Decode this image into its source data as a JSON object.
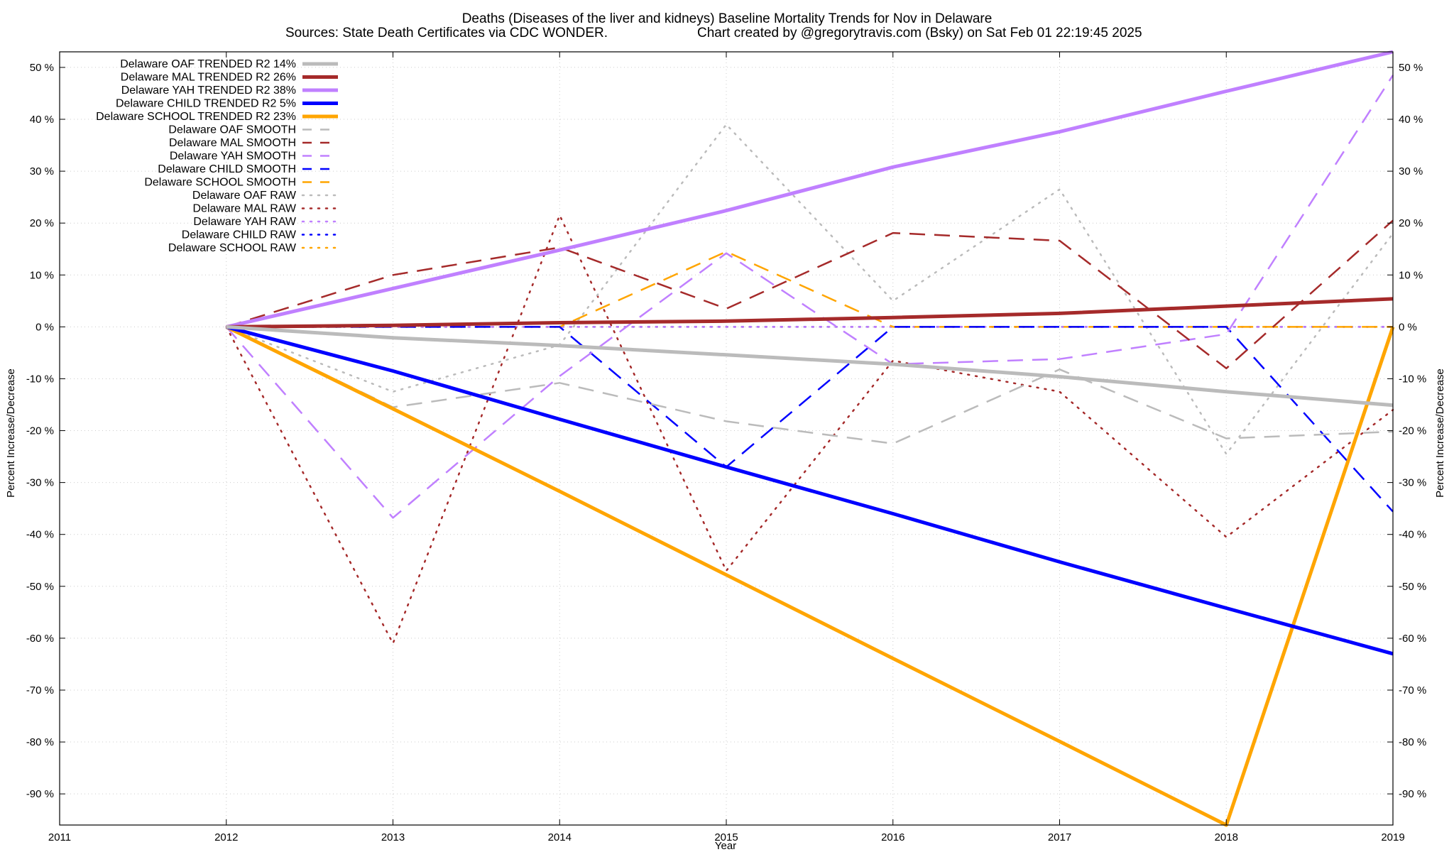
{
  "chart_data": {
    "type": "line",
    "title": "Deaths (Diseases of the liver and kidneys)  Baseline Mortality Trends for Nov in Delaware",
    "subtitle_left": "Sources: State Death Certificates via CDC WONDER.",
    "subtitle_right": "Chart created by @gregorytravis.com (Bsky) on Sat Feb 01 22:19:45 2025",
    "xlabel": "Year",
    "ylabel": "Percent Increase/Decrease",
    "y2label": "Percent Increase/Decrease",
    "xlim": [
      2011,
      2019
    ],
    "ylim": [
      -96,
      53
    ],
    "x_ticks": [
      2011,
      2012,
      2013,
      2014,
      2015,
      2016,
      2017,
      2018,
      2019
    ],
    "x_tick_labels": [
      "2011",
      "2012",
      "2013",
      "2014",
      "2015",
      "2016",
      "2017",
      "2018",
      "2019"
    ],
    "y_ticks": [
      50,
      40,
      30,
      20,
      10,
      0,
      -10,
      -20,
      -30,
      -40,
      -50,
      -60,
      -70,
      -80,
      -90
    ],
    "y_tick_labels": [
      "50 %",
      "40 %",
      "30 %",
      "20 %",
      "10 %",
      "0 %",
      "-10 %",
      "-20 %",
      "-30 %",
      "-40 %",
      "-50 %",
      "-60 %",
      "-70 %",
      "-80 %",
      "-90 %"
    ],
    "grid": true,
    "legend_position": "top-left",
    "x": [
      2012,
      2013,
      2014,
      2015,
      2016,
      2017,
      2018,
      2019
    ],
    "series": [
      {
        "name": "Delaware OAF TRENDED R2  14%",
        "color": "#bbbbbb",
        "style": "solid",
        "width": 5,
        "values": [
          0,
          -2.1,
          -3.6,
          -5.4,
          -7.2,
          -9.6,
          -12.5,
          -15.1
        ]
      },
      {
        "name": "Delaware MAL TRENDED R2  26%",
        "color": "#a52a2a",
        "style": "solid",
        "width": 5,
        "values": [
          0,
          0.3,
          0.8,
          1.1,
          1.8,
          2.6,
          4.0,
          5.4
        ]
      },
      {
        "name": "Delaware YAH TRENDED R2  38%",
        "color": "#c080ff",
        "style": "solid",
        "width": 5,
        "values": [
          0,
          7.4,
          14.8,
          22.4,
          30.8,
          37.6,
          45.4,
          53
        ]
      },
      {
        "name": "Delaware CHILD TRENDED R2  5%",
        "color": "#0000ff",
        "style": "solid",
        "width": 5,
        "values": [
          0,
          -8.5,
          -17.8,
          -27,
          -36,
          -45.3,
          -54.2,
          -63
        ]
      },
      {
        "name": "Delaware SCHOOL TRENDED R2  23%",
        "color": "#ffa500",
        "style": "solid",
        "width": 5,
        "values": [
          0,
          -15.8,
          -31.7,
          -47.8,
          -63.9,
          -79.9,
          -96,
          0
        ]
      },
      {
        "name": "Delaware OAF SMOOTH",
        "color": "#bbbbbb",
        "style": "dashed",
        "width": 2.5,
        "values": [
          0,
          -15.5,
          -10.8,
          -18.2,
          -22.5,
          -8.2,
          -21.5,
          -20.2
        ]
      },
      {
        "name": "Delaware MAL SMOOTH",
        "color": "#a52a2a",
        "style": "dashed",
        "width": 2.5,
        "values": [
          0,
          10,
          15.3,
          3.5,
          18.1,
          16.6,
          -8,
          20.5
        ]
      },
      {
        "name": "Delaware YAH SMOOTH",
        "color": "#c080ff",
        "style": "dashed",
        "width": 2.5,
        "values": [
          0,
          -36.8,
          -9.5,
          14.2,
          -7.2,
          -6.2,
          -1.4,
          48.5
        ]
      },
      {
        "name": "Delaware CHILD SMOOTH",
        "color": "#0000ff",
        "style": "dashed",
        "width": 2.5,
        "values": [
          0,
          0,
          0,
          -27,
          0,
          0,
          0,
          -35.6
        ]
      },
      {
        "name": "Delaware SCHOOL SMOOTH",
        "color": "#ffa500",
        "style": "dashed",
        "width": 2.5,
        "values": [
          0,
          0,
          0,
          14.5,
          0,
          0,
          0,
          0
        ]
      },
      {
        "name": "Delaware OAF RAW",
        "color": "#bbbbbb",
        "style": "dotted",
        "width": 2.5,
        "values": [
          0,
          -12.5,
          -3.5,
          39,
          5,
          26.5,
          -24.5,
          18
        ]
      },
      {
        "name": "Delaware MAL RAW",
        "color": "#a52a2a",
        "style": "dotted",
        "width": 2.5,
        "values": [
          0,
          -61,
          21.5,
          -47,
          -6.5,
          -12.5,
          -40.5,
          -16
        ]
      },
      {
        "name": "Delaware YAH RAW",
        "color": "#c080ff",
        "style": "dotted",
        "width": 2.5,
        "values": [
          0,
          0,
          0,
          0,
          0,
          0,
          0,
          0
        ]
      },
      {
        "name": "Delaware CHILD RAW",
        "color": "#0000ff",
        "style": "dotted",
        "width": 2.5,
        "values": [
          0,
          0,
          0,
          0,
          0,
          0,
          0,
          0
        ]
      },
      {
        "name": "Delaware SCHOOL RAW",
        "color": "#ffa500",
        "style": "dotted",
        "width": 2.5,
        "values": [
          0,
          0,
          0,
          0,
          0,
          0,
          0,
          0
        ]
      }
    ]
  }
}
